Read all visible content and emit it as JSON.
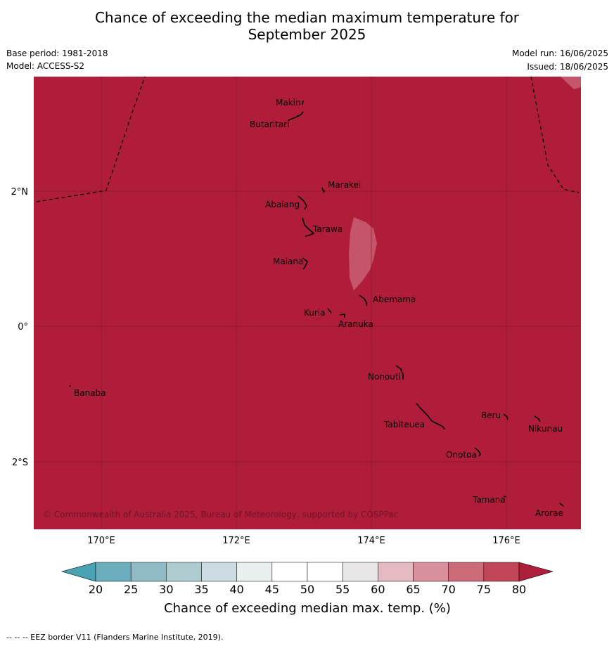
{
  "title": {
    "line1": "Chance of exceeding the median maximum temperature for",
    "line2": "September 2025"
  },
  "meta": {
    "base_period": "Base period: 1981-2018",
    "model": "Model: ACCESS-S2",
    "model_run": "Model run: 16/06/2025",
    "issued": "Issued: 18/06/2025"
  },
  "map": {
    "background_color": "#b01d3a",
    "patch_color": "#c5556a",
    "copyright": "© Commonwealth of Australia 2025, Bureau of Meteorology, supported by COSPPac",
    "lon_ticks": [
      {
        "lon": 170,
        "label": "170°E"
      },
      {
        "lon": 172,
        "label": "172°E"
      },
      {
        "lon": 174,
        "label": "174°E"
      },
      {
        "lon": 176,
        "label": "176°E"
      }
    ],
    "lat_ticks": [
      {
        "lat": 2,
        "label": "2°N"
      },
      {
        "lat": 0,
        "label": "0°"
      },
      {
        "lat": -2,
        "label": "2°S"
      }
    ],
    "places": [
      {
        "name": "Makin"
      },
      {
        "name": "Butaritari"
      },
      {
        "name": "Marakei"
      },
      {
        "name": "Abaiang"
      },
      {
        "name": "Tarawa"
      },
      {
        "name": "Maiana"
      },
      {
        "name": "Abemama"
      },
      {
        "name": "Kuria"
      },
      {
        "name": "Aranuka"
      },
      {
        "name": "Nonouti"
      },
      {
        "name": "Banaba"
      },
      {
        "name": "Tabiteuea"
      },
      {
        "name": "Beru"
      },
      {
        "name": "Nikunau"
      },
      {
        "name": "Onotoa"
      },
      {
        "name": "Tamana"
      },
      {
        "name": "Arorae"
      }
    ]
  },
  "colorbar": {
    "ticks": [
      "20",
      "25",
      "30",
      "35",
      "40",
      "45",
      "50",
      "55",
      "60",
      "65",
      "70",
      "75",
      "80"
    ],
    "colors": [
      "#6aaebd",
      "#8fbac6",
      "#aecbd0",
      "#cbdbdf",
      "#e9eff1",
      "#ffffff",
      "#ffffff",
      "#e8e6e7",
      "#e3b9c2",
      "#d7909c",
      "#cb6b7a",
      "#c04658"
    ],
    "under_color": "#4aa3b4",
    "over_color": "#ad1f3b",
    "label": "Chance of exceeding median max. temp. (%)"
  },
  "footer": "--  --  -- EEZ border V11 (Flanders Marine Institute, 2019)."
}
